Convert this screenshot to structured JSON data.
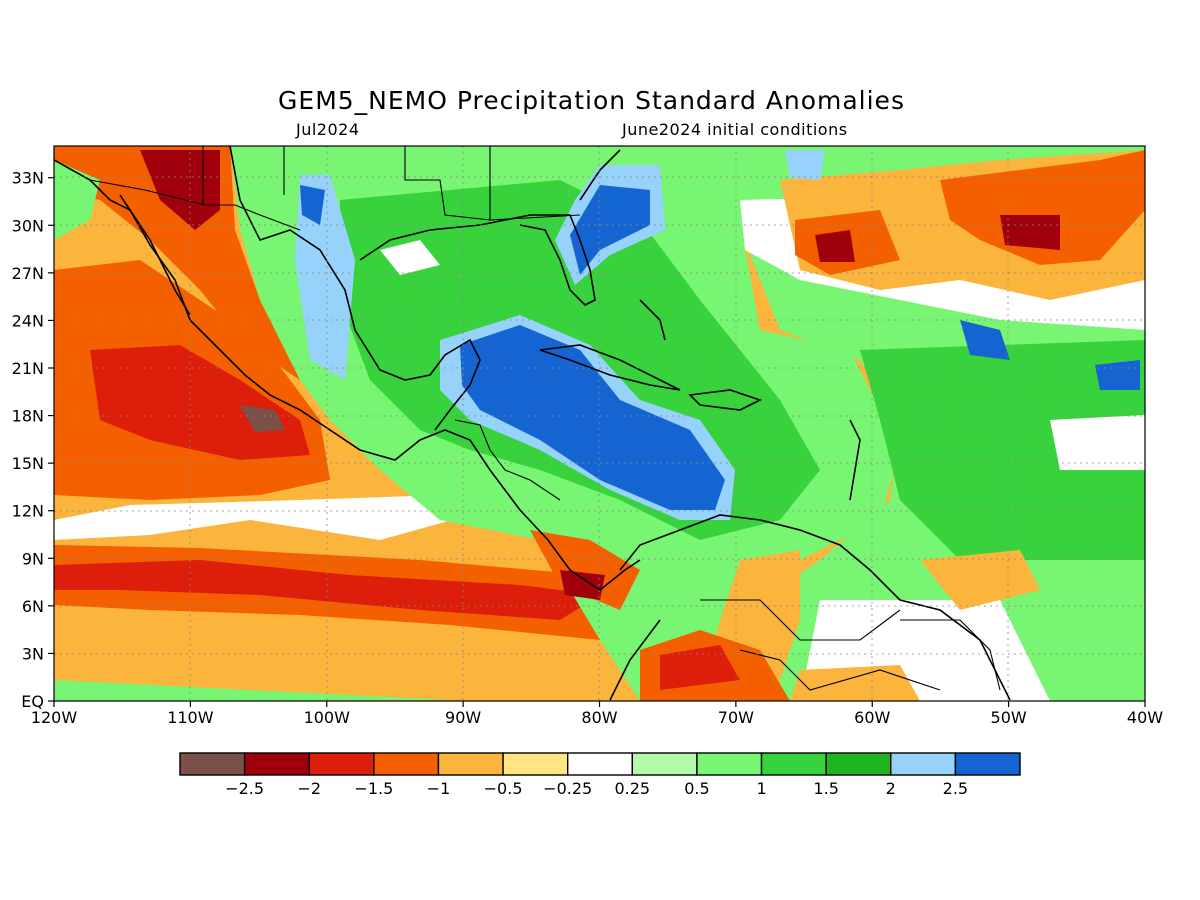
{
  "title": "GEM5_NEMO Precipitation Standard Anomalies",
  "subtitle_left": "Jul2024",
  "subtitle_right": "June2024 initial conditions",
  "map": {
    "lon_range": [
      -120,
      -40
    ],
    "lat_range": [
      0,
      35
    ],
    "x_ticks": [
      "120W",
      "110W",
      "100W",
      "90W",
      "80W",
      "70W",
      "60W",
      "50W",
      "40W"
    ],
    "y_ticks": [
      "EQ",
      "3N",
      "6N",
      "9N",
      "12N",
      "15N",
      "18N",
      "21N",
      "24N",
      "27N",
      "30N",
      "33N"
    ],
    "grid": "dotted"
  },
  "colorbar": {
    "labels": [
      "−2.5",
      "−2",
      "−1.5",
      "−1",
      "−0.5",
      "−0.25",
      "0.25",
      "0.5",
      "1",
      "1.5",
      "2",
      "2.5"
    ],
    "colors": [
      "#7a5048",
      "#a0000c",
      "#dc1e0a",
      "#f46000",
      "#fbb43c",
      "#ffe682",
      "#ffffff",
      "#b4faaa",
      "#78f573",
      "#37d23c",
      "#1eb41e",
      "#96d2fa",
      "#1464d2"
    ]
  },
  "colors": {
    "land_outline": "#000000",
    "neutral": "#ffffff"
  }
}
